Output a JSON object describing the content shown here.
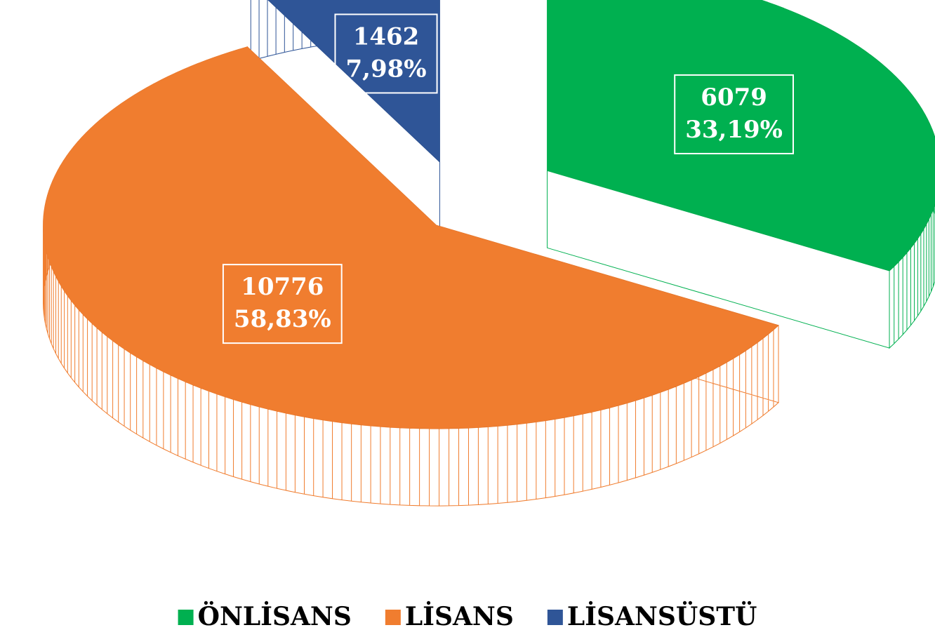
{
  "chart_data": {
    "type": "pie3d",
    "categories": [
      "ÖNLİSANS",
      "LİSANS",
      "LİSANSÜSTÜ"
    ],
    "values": [
      6079,
      10776,
      1462
    ],
    "percentages": [
      33.19,
      58.83,
      7.98
    ],
    "percentage_labels": [
      "33,19%",
      "58,83%",
      "7,98%"
    ],
    "colors": [
      "#00b050",
      "#f07d2f",
      "#2f5597"
    ],
    "legend": "bottom"
  }
}
